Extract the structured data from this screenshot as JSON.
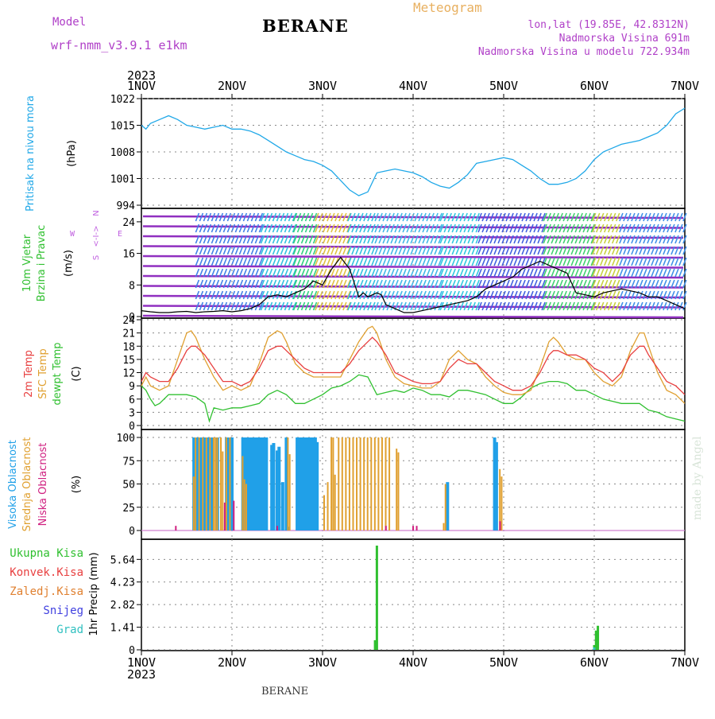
{
  "header": {
    "title": "BERANE",
    "model_label": "Model",
    "model_name": "wrf-nmm_v3.9.1 e1km",
    "meteogram_label": "Meteogram",
    "lonlat": "lon,lat (19.85E, 42.8312N)",
    "elevation": "Nadmorska Visina 691m",
    "elevation_model": "Nadmorska Visina u modelu 722.934m"
  },
  "footer": {
    "station": "BERANE",
    "credit": "made by Angel"
  },
  "colors": {
    "pressure": "#20a8e8",
    "temp2m": "#e84040",
    "sfc": "#e0a030",
    "dewpt": "#30c030",
    "high_cloud": "#20a0e8",
    "mid_cloud": "#e0a030",
    "low_cloud": "#d02080",
    "total_precip": "#30c030",
    "conv_precip": "#e84040",
    "frozen_precip": "#e08030",
    "snow": "#4040e0",
    "hail": "#30c0c0",
    "wind_text": "#c060e0"
  },
  "chart_data": [
    {
      "type": "line",
      "id": "pressure",
      "ylabel": "Pritisak na nivou mora",
      "unit": "(hPa)",
      "yticks": [
        994,
        1001,
        1008,
        1015,
        1022
      ],
      "ylim": [
        994,
        1022
      ],
      "xlim": [
        0,
        6
      ],
      "top_year": "2023",
      "top_dates": [
        "1NOV",
        "2NOV",
        "3NOV",
        "4NOV",
        "5NOV",
        "6NOV",
        "7NOV"
      ],
      "series": [
        {
          "x": [
            0,
            0.05,
            0.1,
            0.2,
            0.3,
            0.4,
            0.5,
            0.6,
            0.7,
            0.8,
            0.9,
            1.0,
            1.1,
            1.2,
            1.3,
            1.4,
            1.5,
            1.6,
            1.7,
            1.8,
            1.9,
            2.0,
            2.1,
            2.2,
            2.3,
            2.4,
            2.5,
            2.6,
            2.7,
            2.8,
            2.9,
            3.0,
            3.1,
            3.2,
            3.3,
            3.4,
            3.5,
            3.55,
            3.6,
            3.65,
            3.7,
            3.8,
            3.9,
            4.0,
            4.1,
            4.2,
            4.3,
            4.4,
            4.5,
            4.6,
            4.7,
            4.8,
            4.9,
            5.0,
            5.1,
            5.2,
            5.3,
            5.4,
            5.5,
            5.6,
            5.7,
            5.8,
            5.9,
            6.0
          ],
          "y": [
            1015,
            1014,
            1015.5,
            1016.5,
            1017.5,
            1016.5,
            1015,
            1014.5,
            1014,
            1014.5,
            1015,
            1014,
            1014,
            1013.5,
            1012.5,
            1011,
            1009.5,
            1008,
            1007,
            1006,
            1005.5,
            1004.5,
            1003,
            1000.5,
            998,
            996.5,
            997.5,
            1002.5,
            1003,
            1003.5,
            1003,
            1002.5,
            1001.5,
            1000,
            999,
            998.5,
            1000,
            1001,
            1002,
            1003.5,
            1005,
            1005.5,
            1006,
            1006.5,
            1006,
            1004.5,
            1003,
            1001,
            999.5,
            999.5,
            1000,
            1001,
            1003,
            1006,
            1008,
            1009,
            1010,
            1010.5,
            1011,
            1012,
            1013,
            1015,
            1018,
            1019.5
          ]
        }
      ]
    },
    {
      "type": "line",
      "id": "wind",
      "ylabel_1": "10m Vjetar",
      "ylabel_2": "Brzina i Pravac",
      "unit": "(m/s)",
      "compass": [
        "W",
        "<-",
        "I",
        "->",
        "E",
        "S",
        "N"
      ],
      "yticks": [
        0,
        8,
        16,
        24
      ],
      "ylim": [
        0,
        27
      ],
      "xlim": [
        0,
        6
      ],
      "series": [
        {
          "x": [
            0,
            0.1,
            0.2,
            0.3,
            0.4,
            0.5,
            0.6,
            0.7,
            0.8,
            0.9,
            1.0,
            1.1,
            1.2,
            1.3,
            1.4,
            1.5,
            1.6,
            1.7,
            1.8,
            1.9,
            2.0,
            2.1,
            2.2,
            2.3,
            2.4,
            2.45,
            2.5,
            2.55,
            2.6,
            2.65,
            2.7,
            2.8,
            2.9,
            3.0,
            3.1,
            3.2,
            3.3,
            3.4,
            3.5,
            3.6,
            3.7,
            3.8,
            3.9,
            4.0,
            4.1,
            4.2,
            4.3,
            4.4,
            4.5,
            4.6,
            4.7,
            4.8,
            4.9,
            5.0,
            5.1,
            5.2,
            5.3,
            5.4,
            5.5,
            5.6,
            5.7,
            5.8,
            5.9,
            6.0
          ],
          "y": [
            1.5,
            1.2,
            1.0,
            1.0,
            1.2,
            1.3,
            1.0,
            1.2,
            1.3,
            1.5,
            1.2,
            1.5,
            2.0,
            3.0,
            5.0,
            5.5,
            5.0,
            6.0,
            7.0,
            9.0,
            8.0,
            12.0,
            15.0,
            12.0,
            5.0,
            6.0,
            5.0,
            5.5,
            6.0,
            5.5,
            3.0,
            2.0,
            1.0,
            1.0,
            1.5,
            2.0,
            2.5,
            3.0,
            3.5,
            4.0,
            5.0,
            7.0,
            8.0,
            9.0,
            10.0,
            12.0,
            13.0,
            14.0,
            13.0,
            12.0,
            11.0,
            6.0,
            5.5,
            5.0,
            6.0,
            6.5,
            7.0,
            6.5,
            6.0,
            5.0,
            5.0,
            4.0,
            3.0,
            2.0
          ]
        }
      ]
    },
    {
      "type": "line",
      "id": "temperature",
      "ylabel_1": "2m Temp",
      "ylabel_2": "SFC Temp",
      "ylabel_3": "dewpt Temp",
      "unit": "(C)",
      "yticks": [
        0,
        3,
        6,
        9,
        12,
        15,
        18,
        21,
        24
      ],
      "ylim": [
        0,
        24
      ],
      "xlim": [
        0,
        6
      ],
      "series": [
        {
          "name": "2m Temp",
          "x": [
            0,
            0.05,
            0.1,
            0.2,
            0.3,
            0.4,
            0.5,
            0.55,
            0.6,
            0.7,
            0.8,
            0.9,
            1.0,
            1.1,
            1.2,
            1.3,
            1.4,
            1.5,
            1.55,
            1.6,
            1.7,
            1.8,
            1.9,
            2.0,
            2.1,
            2.2,
            2.3,
            2.4,
            2.5,
            2.55,
            2.6,
            2.7,
            2.8,
            2.9,
            3.0,
            3.1,
            3.2,
            3.3,
            3.4,
            3.5,
            3.55,
            3.6,
            3.7,
            3.8,
            3.9,
            4.0,
            4.1,
            4.2,
            4.3,
            4.4,
            4.5,
            4.55,
            4.6,
            4.7,
            4.8,
            4.9,
            5.0,
            5.1,
            5.2,
            5.3,
            5.4,
            5.5,
            5.55,
            5.6,
            5.7,
            5.8,
            5.9,
            6.0
          ],
          "y": [
            10,
            12,
            11,
            10,
            10,
            13,
            17,
            18,
            18,
            16,
            13,
            10,
            10,
            9,
            10,
            13,
            17,
            18,
            18,
            17,
            15,
            13,
            12,
            12,
            12,
            12,
            14,
            17,
            19,
            20,
            19,
            16,
            12,
            11,
            10,
            9.5,
            9.5,
            10,
            13,
            15,
            14.5,
            14,
            14,
            12,
            10,
            9,
            8,
            8,
            9,
            12,
            16,
            17,
            17,
            16,
            16,
            15,
            13,
            12,
            10,
            12,
            16,
            18,
            18,
            16,
            13,
            10,
            9,
            7
          ]
        },
        {
          "name": "SFC Temp",
          "x": [
            0,
            0.05,
            0.1,
            0.2,
            0.3,
            0.4,
            0.5,
            0.55,
            0.6,
            0.7,
            0.8,
            0.9,
            1.0,
            1.1,
            1.2,
            1.3,
            1.4,
            1.5,
            1.55,
            1.6,
            1.7,
            1.8,
            1.9,
            2.0,
            2.1,
            2.2,
            2.3,
            2.4,
            2.5,
            2.55,
            2.6,
            2.7,
            2.8,
            2.9,
            3.0,
            3.1,
            3.2,
            3.3,
            3.4,
            3.5,
            3.55,
            3.6,
            3.7,
            3.8,
            3.9,
            4.0,
            4.1,
            4.2,
            4.3,
            4.4,
            4.5,
            4.55,
            4.6,
            4.7,
            4.8,
            4.9,
            5.0,
            5.1,
            5.2,
            5.3,
            5.4,
            5.5,
            5.55,
            5.6,
            5.7,
            5.8,
            5.9,
            6.0
          ],
          "y": [
            9,
            11,
            9,
            8,
            9,
            15,
            21,
            21.5,
            20,
            15,
            11,
            8,
            9,
            8,
            9,
            14,
            20,
            21.5,
            21,
            19,
            14,
            12,
            11,
            11,
            11,
            11,
            15,
            19,
            22,
            22.5,
            21,
            15,
            11,
            9.5,
            9,
            8.5,
            8.5,
            10,
            15,
            17,
            16,
            15,
            14,
            11,
            9,
            7.5,
            7,
            7,
            8,
            13,
            19,
            20,
            19,
            16,
            15,
            15,
            12,
            10,
            9,
            11,
            17,
            21,
            21,
            18,
            12,
            8,
            7,
            5
          ]
        },
        {
          "name": "dewpt Temp",
          "x": [
            0,
            0.05,
            0.1,
            0.15,
            0.2,
            0.3,
            0.4,
            0.5,
            0.6,
            0.7,
            0.75,
            0.8,
            0.9,
            1.0,
            1.1,
            1.2,
            1.3,
            1.4,
            1.5,
            1.6,
            1.7,
            1.8,
            1.9,
            2.0,
            2.1,
            2.2,
            2.3,
            2.4,
            2.5,
            2.6,
            2.7,
            2.8,
            2.9,
            3.0,
            3.1,
            3.2,
            3.3,
            3.4,
            3.5,
            3.6,
            3.7,
            3.8,
            3.9,
            4.0,
            4.1,
            4.2,
            4.3,
            4.4,
            4.5,
            4.6,
            4.7,
            4.8,
            4.9,
            5.0,
            5.1,
            5.2,
            5.3,
            5.4,
            5.5,
            5.6,
            5.7,
            5.8,
            5.9,
            6.0
          ],
          "y": [
            9,
            8,
            6,
            4.5,
            5,
            7,
            7,
            7,
            6.5,
            5,
            1,
            4,
            3.5,
            4,
            4,
            4.5,
            5,
            7,
            8,
            7,
            5,
            5,
            6,
            7,
            8.5,
            9,
            10,
            11.5,
            11,
            7,
            7.5,
            8,
            7.5,
            8.5,
            8,
            7,
            7,
            6.5,
            8,
            8,
            7.5,
            7,
            6,
            5,
            5,
            6.5,
            8.5,
            9.5,
            10,
            10,
            9.5,
            8,
            8,
            7,
            6,
            5.5,
            5,
            5,
            5,
            3.5,
            3,
            2,
            1.5,
            1
          ]
        }
      ]
    },
    {
      "type": "bar",
      "id": "clouds",
      "ylabel_1": "Visoka Oblacnost",
      "ylabel_2": "Srednja Oblacnost",
      "ylabel_3": "Niska Oblacnost",
      "unit": "(%)",
      "yticks": [
        0,
        25,
        50,
        75,
        100
      ],
      "ylim": [
        0,
        100
      ],
      "xlim": [
        0,
        6
      ],
      "series": [
        {
          "name": "Visoka Oblacnost",
          "x": [
            0.58,
            0.6,
            0.62,
            0.64,
            0.66,
            0.68,
            0.7,
            0.72,
            0.74,
            0.76,
            0.78,
            0.84,
            0.94,
            0.96,
            1.0,
            1.12,
            1.14,
            1.16,
            1.18,
            1.2,
            1.22,
            1.24,
            1.26,
            1.28,
            1.3,
            1.32,
            1.34,
            1.36,
            1.38,
            1.44,
            1.46,
            1.5,
            1.52,
            1.56,
            1.6,
            1.62,
            1.72,
            1.74,
            1.76,
            1.78,
            1.8,
            1.82,
            1.84,
            1.86,
            1.88,
            1.9,
            1.92,
            1.94,
            3.38,
            3.9,
            3.92
          ],
          "y": [
            100,
            100,
            100,
            100,
            100,
            100,
            100,
            100,
            100,
            100,
            100,
            100,
            100,
            100,
            100,
            100,
            100,
            100,
            100,
            100,
            100,
            100,
            100,
            100,
            100,
            100,
            100,
            100,
            100,
            92,
            94,
            86,
            90,
            52,
            100,
            4,
            100,
            100,
            100,
            100,
            100,
            100,
            100,
            100,
            100,
            100,
            100,
            95,
            52,
            100,
            95
          ]
        },
        {
          "name": "Srednja Oblacnost",
          "x": [
            0.56,
            0.58,
            0.62,
            0.66,
            0.7,
            0.74,
            0.78,
            0.8,
            0.82,
            0.86,
            0.88,
            0.92,
            0.96,
            1.1,
            1.12,
            1.14,
            1.6,
            1.62,
            2.0,
            2.04,
            2.08,
            2.1,
            2.12,
            2.16,
            2.2,
            2.24,
            2.28,
            2.32,
            2.36,
            2.4,
            2.44,
            2.48,
            2.52,
            2.56,
            2.6,
            2.64,
            2.68,
            2.72,
            2.8,
            2.82,
            3.32,
            3.34,
            3.94,
            3.96
          ],
          "y": [
            58,
            100,
            100,
            100,
            100,
            100,
            100,
            100,
            100,
            100,
            85,
            100,
            100,
            80,
            55,
            50,
            100,
            82,
            38,
            52,
            100,
            100,
            60,
            100,
            100,
            100,
            100,
            100,
            100,
            100,
            100,
            100,
            100,
            100,
            100,
            100,
            100,
            100,
            88,
            84,
            8,
            50,
            66,
            58
          ]
        },
        {
          "name": "Niska Oblacnost",
          "x": [
            0.38,
            0.92,
            1.02,
            1.5,
            2.7,
            3.0,
            3.04,
            3.96
          ],
          "y": [
            5,
            30,
            32,
            5,
            5,
            5,
            5,
            10
          ]
        }
      ]
    },
    {
      "type": "bar",
      "id": "precipitation",
      "ylabel": "1hr Precip (mm)",
      "legend": [
        "Ukupna Kisa",
        "Konvek.Kisa",
        "Zaledj.Kisa",
        "Snijeg",
        "Grad"
      ],
      "yticks": [
        0,
        1.41,
        2.82,
        4.23,
        5.64
      ],
      "ylim": [
        0,
        6.5
      ],
      "xlim": [
        0,
        6
      ],
      "bottom_dates": [
        "1NOV",
        "2NOV",
        "3NOV",
        "4NOV",
        "5NOV",
        "6NOV",
        "7NOV"
      ],
      "bottom_year": "2023",
      "series": [
        {
          "name": "Ukupna Kisa",
          "x": [
            2.58,
            2.6,
            5.0,
            5.02,
            5.04
          ],
          "y": [
            0.6,
            6.5,
            0.3,
            1.2,
            1.5
          ]
        },
        {
          "name": "Konvek.Kisa",
          "x": [],
          "y": []
        },
        {
          "name": "Zaledj.Kisa",
          "x": [],
          "y": []
        },
        {
          "name": "Snijeg",
          "x": [],
          "y": []
        },
        {
          "name": "Grad",
          "x": [
            5.0
          ],
          "y": [
            0.15
          ]
        }
      ]
    }
  ]
}
